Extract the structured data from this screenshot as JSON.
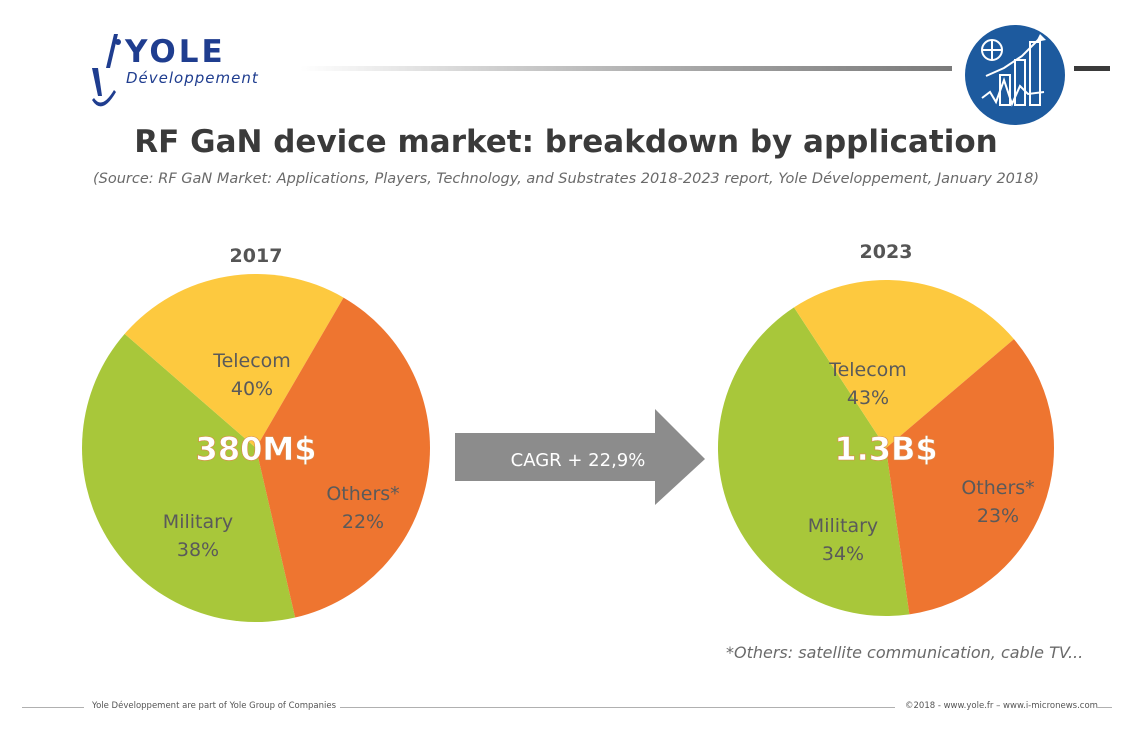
{
  "header": {
    "logo_text": "YOLE",
    "logo_subtext": "Développement",
    "logo_icon": "yole-logo-mark",
    "badge_icon": "market-analysis-badge-icon",
    "title": "RF GaN device market: breakdown by application",
    "source": "(Source: RF GaN Market: Applications, Players, Technology, and Substrates 2018-2023 report, Yole Développement, January 2018)"
  },
  "colors": {
    "telecom": "#a8c73a",
    "military": "#ee7530",
    "others": "#fdc93f",
    "arrow": "#8c8c8c",
    "brand": "#1f3d8f"
  },
  "chart_data": [
    {
      "type": "pie",
      "title": "2017",
      "total_label": "380M$",
      "slices": [
        {
          "label": "Telecom",
          "value": 40,
          "value_label": "40%"
        },
        {
          "label": "Others*",
          "value": 22,
          "value_label": "22%"
        },
        {
          "label": "Military",
          "value": 38,
          "value_label": "38%"
        }
      ]
    },
    {
      "type": "pie",
      "title": "2023",
      "total_label": "1.3B$",
      "slices": [
        {
          "label": "Telecom",
          "value": 43,
          "value_label": "43%"
        },
        {
          "label": "Others*",
          "value": 23,
          "value_label": "23%"
        },
        {
          "label": "Military",
          "value": 34,
          "value_label": "34%"
        }
      ]
    }
  ],
  "arrow": {
    "label": "CAGR + 22,9%"
  },
  "footnote": "*Others: satellite communication, cable TV...",
  "footer": {
    "left": "Yole Développement are part of Yole Group of Companies",
    "right": "©2018 - www.yole.fr – www.i-micronews.com"
  }
}
